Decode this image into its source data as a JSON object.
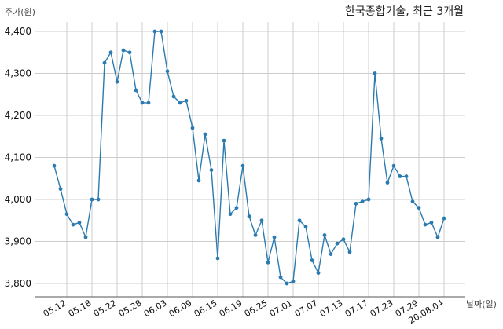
{
  "chart_data": {
    "type": "line",
    "title": "한국종합기술, 최근 3개월",
    "ylabel": "주가(원)",
    "xlabel": "날짜(일)",
    "ylim": [
      3750,
      4450
    ],
    "yticks": [
      3800,
      3900,
      4000,
      4100,
      4200,
      4300,
      4400
    ],
    "ytick_labels": [
      "3,800",
      "3,900",
      "4,000",
      "4,100",
      "4,200",
      "4,300",
      "4,400"
    ],
    "xtick_labels": [
      "05.12",
      "05.18",
      "05.22",
      "05.28",
      "06.03",
      "06.09",
      "06.15",
      "06.19",
      "06.25",
      "07.01",
      "07.07",
      "07.13",
      "07.17",
      "07.23",
      "07.29",
      "20.08.04"
    ],
    "xtick_indices": [
      2,
      6,
      10,
      14,
      18,
      22,
      26,
      30,
      34,
      38,
      42,
      46,
      50,
      54,
      58,
      62
    ],
    "grid": true,
    "color": "#2b7bb0",
    "series": [
      {
        "values": [
          4080,
          4025,
          3965,
          3940,
          3945,
          3910,
          4000,
          4000,
          4325,
          4350,
          4280,
          4355,
          4350,
          4260,
          4230,
          4230,
          4400,
          4400,
          4305,
          4245,
          4230,
          4235,
          4170,
          4045,
          4155,
          4070,
          3860,
          4140,
          3965,
          3980,
          4080,
          3960,
          3915,
          3950,
          3850,
          3910,
          3815,
          3800,
          3805,
          3950,
          3935,
          3855,
          3825,
          3915,
          3870,
          3895,
          3905,
          3875,
          3990,
          3995,
          4000,
          4300,
          4145,
          4040,
          4080,
          4055,
          4055,
          3995,
          3980,
          3940,
          3945,
          3910,
          3955
        ]
      }
    ]
  }
}
